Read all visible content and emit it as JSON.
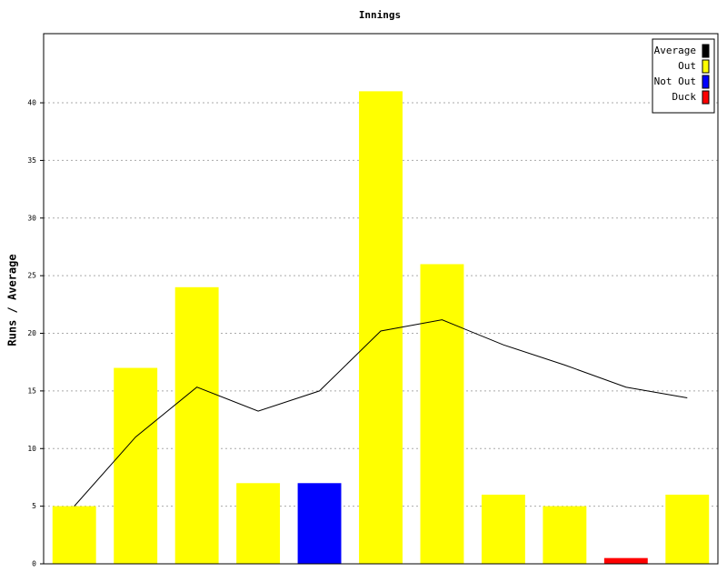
{
  "chart_data": {
    "type": "bar",
    "title": "Innings",
    "y_label": "Runs / Average",
    "categories": [
      null,
      null,
      null,
      null,
      null,
      null,
      null,
      null,
      null,
      null,
      null
    ],
    "series": [
      {
        "name": "Average",
        "type": "line",
        "color": "#000000",
        "values": [
          5,
          11,
          15.33,
          13.25,
          15,
          20.2,
          21.17,
          19,
          17.25,
          15.33,
          14.4
        ]
      },
      {
        "name": "Out",
        "color": "#ffff00",
        "values": [
          5,
          17,
          24,
          7,
          null,
          41,
          26,
          6,
          5,
          null,
          6
        ]
      },
      {
        "name": "Not Out",
        "color": "#0000ff",
        "values": [
          null,
          null,
          null,
          null,
          7,
          null,
          null,
          null,
          null,
          null,
          null
        ]
      },
      {
        "name": "Duck",
        "color": "#ff0000",
        "values": [
          null,
          null,
          null,
          null,
          null,
          null,
          null,
          null,
          null,
          0.5,
          null
        ]
      }
    ],
    "ylim": [
      0,
      46
    ],
    "yticks": [
      0,
      5,
      10,
      15,
      20,
      25,
      30,
      35,
      40
    ],
    "grid": true,
    "legend": "top-right"
  }
}
